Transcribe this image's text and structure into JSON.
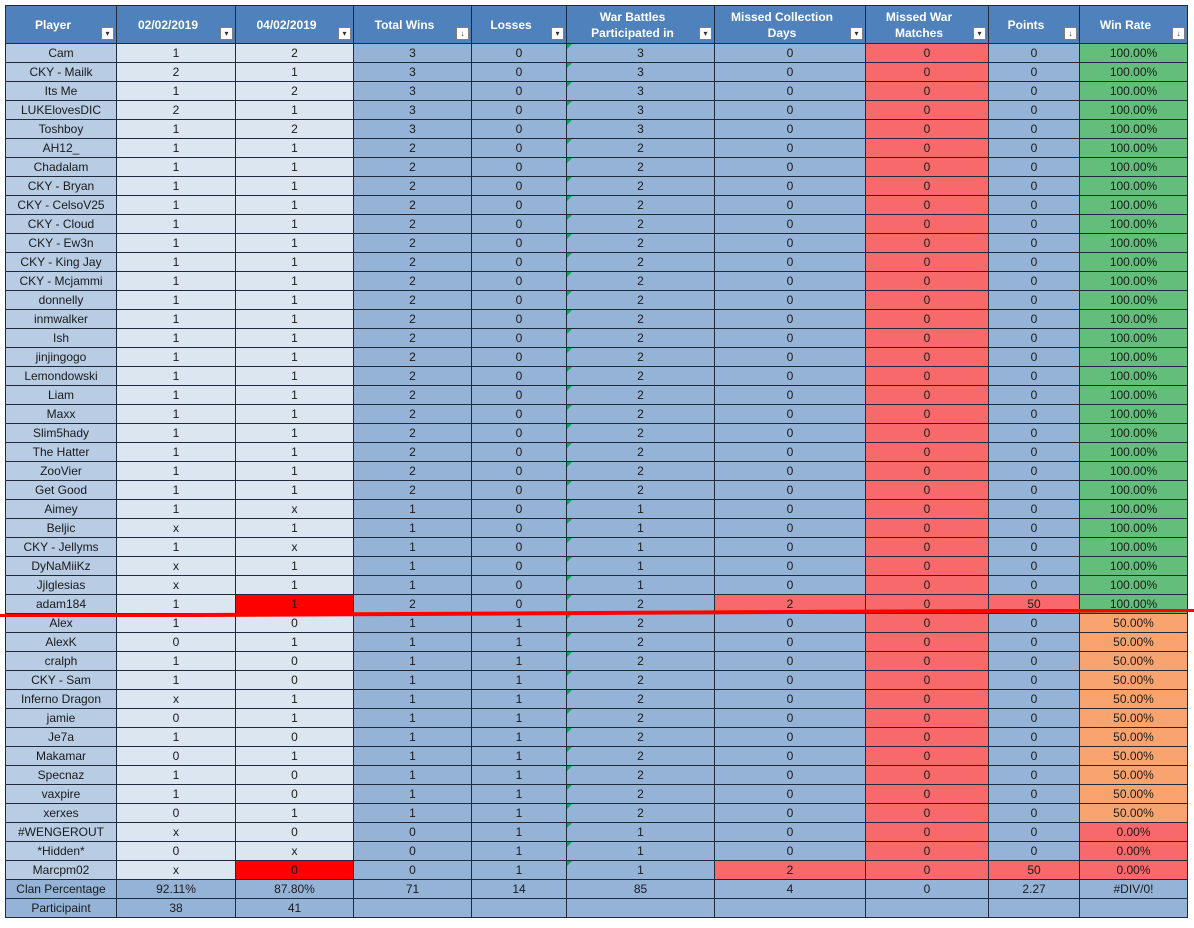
{
  "headers": [
    {
      "label": "Player",
      "filter": "▾"
    },
    {
      "label": "02/02/2019",
      "filter": "▾"
    },
    {
      "label": "04/02/2019",
      "filter": "▾"
    },
    {
      "label": "Total Wins",
      "filter": "↓"
    },
    {
      "label": "Losses",
      "filter": "▾"
    },
    {
      "label": "War Battles Participated in",
      "filter": "▾"
    },
    {
      "label": "Missed Collection Days",
      "filter": "▾"
    },
    {
      "label": "Missed War Matches",
      "filter": "▾"
    },
    {
      "label": "Points",
      "filter": "↓"
    },
    {
      "label": "Win Rate",
      "filter": "↓"
    }
  ],
  "rows": [
    {
      "player": "Cam",
      "d1": "1",
      "d2": "2",
      "wins": "3",
      "losses": "0",
      "wars": "3",
      "coll": "0",
      "miss": "0",
      "pts": "0",
      "rate": "100.00%"
    },
    {
      "player": "CKY - Mailk",
      "d1": "2",
      "d2": "1",
      "wins": "3",
      "losses": "0",
      "wars": "3",
      "coll": "0",
      "miss": "0",
      "pts": "0",
      "rate": "100.00%"
    },
    {
      "player": "Its Me",
      "d1": "1",
      "d2": "2",
      "wins": "3",
      "losses": "0",
      "wars": "3",
      "coll": "0",
      "miss": "0",
      "pts": "0",
      "rate": "100.00%"
    },
    {
      "player": "LUKElovesDIC",
      "d1": "2",
      "d2": "1",
      "wins": "3",
      "losses": "0",
      "wars": "3",
      "coll": "0",
      "miss": "0",
      "pts": "0",
      "rate": "100.00%"
    },
    {
      "player": "Toshboy",
      "d1": "1",
      "d2": "2",
      "wins": "3",
      "losses": "0",
      "wars": "3",
      "coll": "0",
      "miss": "0",
      "pts": "0",
      "rate": "100.00%"
    },
    {
      "player": "AH12_",
      "d1": "1",
      "d2": "1",
      "wins": "2",
      "losses": "0",
      "wars": "2",
      "coll": "0",
      "miss": "0",
      "pts": "0",
      "rate": "100.00%"
    },
    {
      "player": "Chadalam",
      "d1": "1",
      "d2": "1",
      "wins": "2",
      "losses": "0",
      "wars": "2",
      "coll": "0",
      "miss": "0",
      "pts": "0",
      "rate": "100.00%"
    },
    {
      "player": "CKY - Bryan",
      "d1": "1",
      "d2": "1",
      "wins": "2",
      "losses": "0",
      "wars": "2",
      "coll": "0",
      "miss": "0",
      "pts": "0",
      "rate": "100.00%"
    },
    {
      "player": "CKY - CelsoV25",
      "d1": "1",
      "d2": "1",
      "wins": "2",
      "losses": "0",
      "wars": "2",
      "coll": "0",
      "miss": "0",
      "pts": "0",
      "rate": "100.00%"
    },
    {
      "player": "CKY - Cloud",
      "d1": "1",
      "d2": "1",
      "wins": "2",
      "losses": "0",
      "wars": "2",
      "coll": "0",
      "miss": "0",
      "pts": "0",
      "rate": "100.00%"
    },
    {
      "player": "CKY - Ew3n",
      "d1": "1",
      "d2": "1",
      "wins": "2",
      "losses": "0",
      "wars": "2",
      "coll": "0",
      "miss": "0",
      "pts": "0",
      "rate": "100.00%"
    },
    {
      "player": "CKY - King Jay",
      "d1": "1",
      "d2": "1",
      "wins": "2",
      "losses": "0",
      "wars": "2",
      "coll": "0",
      "miss": "0",
      "pts": "0",
      "rate": "100.00%"
    },
    {
      "player": "CKY - Mcjammi",
      "d1": "1",
      "d2": "1",
      "wins": "2",
      "losses": "0",
      "wars": "2",
      "coll": "0",
      "miss": "0",
      "pts": "0",
      "rate": "100.00%"
    },
    {
      "player": "donnelly",
      "d1": "1",
      "d2": "1",
      "wins": "2",
      "losses": "0",
      "wars": "2",
      "coll": "0",
      "miss": "0",
      "pts": "0",
      "rate": "100.00%"
    },
    {
      "player": "inmwalker",
      "d1": "1",
      "d2": "1",
      "wins": "2",
      "losses": "0",
      "wars": "2",
      "coll": "0",
      "miss": "0",
      "pts": "0",
      "rate": "100.00%"
    },
    {
      "player": "Ish",
      "d1": "1",
      "d2": "1",
      "wins": "2",
      "losses": "0",
      "wars": "2",
      "coll": "0",
      "miss": "0",
      "pts": "0",
      "rate": "100.00%"
    },
    {
      "player": "jinjingogo",
      "d1": "1",
      "d2": "1",
      "wins": "2",
      "losses": "0",
      "wars": "2",
      "coll": "0",
      "miss": "0",
      "pts": "0",
      "rate": "100.00%"
    },
    {
      "player": "Lemondowski",
      "d1": "1",
      "d2": "1",
      "wins": "2",
      "losses": "0",
      "wars": "2",
      "coll": "0",
      "miss": "0",
      "pts": "0",
      "rate": "100.00%"
    },
    {
      "player": "Liam",
      "d1": "1",
      "d2": "1",
      "wins": "2",
      "losses": "0",
      "wars": "2",
      "coll": "0",
      "miss": "0",
      "pts": "0",
      "rate": "100.00%"
    },
    {
      "player": "Maxx",
      "d1": "1",
      "d2": "1",
      "wins": "2",
      "losses": "0",
      "wars": "2",
      "coll": "0",
      "miss": "0",
      "pts": "0",
      "rate": "100.00%"
    },
    {
      "player": "Slim5hady",
      "d1": "1",
      "d2": "1",
      "wins": "2",
      "losses": "0",
      "wars": "2",
      "coll": "0",
      "miss": "0",
      "pts": "0",
      "rate": "100.00%"
    },
    {
      "player": "The Hatter",
      "d1": "1",
      "d2": "1",
      "wins": "2",
      "losses": "0",
      "wars": "2",
      "coll": "0",
      "miss": "0",
      "pts": "0",
      "rate": "100.00%"
    },
    {
      "player": "ZooVier",
      "d1": "1",
      "d2": "1",
      "wins": "2",
      "losses": "0",
      "wars": "2",
      "coll": "0",
      "miss": "0",
      "pts": "0",
      "rate": "100.00%"
    },
    {
      "player": "Get Good",
      "d1": "1",
      "d2": "1",
      "wins": "2",
      "losses": "0",
      "wars": "2",
      "coll": "0",
      "miss": "0",
      "pts": "0",
      "rate": "100.00%"
    },
    {
      "player": "Aimey",
      "d1": "1",
      "d2": "x",
      "wins": "1",
      "losses": "0",
      "wars": "1",
      "coll": "0",
      "miss": "0",
      "pts": "0",
      "rate": "100.00%"
    },
    {
      "player": "Beljic",
      "d1": "x",
      "d2": "1",
      "wins": "1",
      "losses": "0",
      "wars": "1",
      "coll": "0",
      "miss": "0",
      "pts": "0",
      "rate": "100.00%"
    },
    {
      "player": "CKY - Jellyms",
      "d1": "1",
      "d2": "x",
      "wins": "1",
      "losses": "0",
      "wars": "1",
      "coll": "0",
      "miss": "0",
      "pts": "0",
      "rate": "100.00%"
    },
    {
      "player": "DyNaMiiKz",
      "d1": "x",
      "d2": "1",
      "wins": "1",
      "losses": "0",
      "wars": "1",
      "coll": "0",
      "miss": "0",
      "pts": "0",
      "rate": "100.00%"
    },
    {
      "player": "Jjlglesias",
      "d1": "x",
      "d2": "1",
      "wins": "1",
      "losses": "0",
      "wars": "1",
      "coll": "0",
      "miss": "0",
      "pts": "0",
      "rate": "100.00%"
    },
    {
      "player": "adam184",
      "d1": "1",
      "d2": "1",
      "wins": "2",
      "losses": "0",
      "wars": "2",
      "coll": "2",
      "miss": "0",
      "pts": "50",
      "rate": "100.00%"
    },
    {
      "player": "Alex",
      "d1": "1",
      "d2": "0",
      "wins": "1",
      "losses": "1",
      "wars": "2",
      "coll": "0",
      "miss": "0",
      "pts": "0",
      "rate": "50.00%"
    },
    {
      "player": "AlexK",
      "d1": "0",
      "d2": "1",
      "wins": "1",
      "losses": "1",
      "wars": "2",
      "coll": "0",
      "miss": "0",
      "pts": "0",
      "rate": "50.00%"
    },
    {
      "player": "cralph",
      "d1": "1",
      "d2": "0",
      "wins": "1",
      "losses": "1",
      "wars": "2",
      "coll": "0",
      "miss": "0",
      "pts": "0",
      "rate": "50.00%"
    },
    {
      "player": "CKY - Sam",
      "d1": "1",
      "d2": "0",
      "wins": "1",
      "losses": "1",
      "wars": "2",
      "coll": "0",
      "miss": "0",
      "pts": "0",
      "rate": "50.00%"
    },
    {
      "player": "Inferno Dragon",
      "d1": "x",
      "d2": "1",
      "wins": "1",
      "losses": "1",
      "wars": "2",
      "coll": "0",
      "miss": "0",
      "pts": "0",
      "rate": "50.00%"
    },
    {
      "player": "jamie",
      "d1": "0",
      "d2": "1",
      "wins": "1",
      "losses": "1",
      "wars": "2",
      "coll": "0",
      "miss": "0",
      "pts": "0",
      "rate": "50.00%"
    },
    {
      "player": "Je7a",
      "d1": "1",
      "d2": "0",
      "wins": "1",
      "losses": "1",
      "wars": "2",
      "coll": "0",
      "miss": "0",
      "pts": "0",
      "rate": "50.00%"
    },
    {
      "player": "Makamar",
      "d1": "0",
      "d2": "1",
      "wins": "1",
      "losses": "1",
      "wars": "2",
      "coll": "0",
      "miss": "0",
      "pts": "0",
      "rate": "50.00%"
    },
    {
      "player": "Specnaz",
      "d1": "1",
      "d2": "0",
      "wins": "1",
      "losses": "1",
      "wars": "2",
      "coll": "0",
      "miss": "0",
      "pts": "0",
      "rate": "50.00%"
    },
    {
      "player": "vaxpire",
      "d1": "1",
      "d2": "0",
      "wins": "1",
      "losses": "1",
      "wars": "2",
      "coll": "0",
      "miss": "0",
      "pts": "0",
      "rate": "50.00%"
    },
    {
      "player": "xerxes",
      "d1": "0",
      "d2": "1",
      "wins": "1",
      "losses": "1",
      "wars": "2",
      "coll": "0",
      "miss": "0",
      "pts": "0",
      "rate": "50.00%"
    },
    {
      "player": "#WENGEROUT",
      "d1": "x",
      "d2": "0",
      "wins": "0",
      "losses": "1",
      "wars": "1",
      "coll": "0",
      "miss": "0",
      "pts": "0",
      "rate": "0.00%"
    },
    {
      "player": "*Hidden*",
      "d1": "0",
      "d2": "x",
      "wins": "0",
      "losses": "1",
      "wars": "1",
      "coll": "0",
      "miss": "0",
      "pts": "0",
      "rate": "0.00%"
    },
    {
      "player": "Marcpm02",
      "d1": "x",
      "d2": "0",
      "wins": "0",
      "losses": "1",
      "wars": "1",
      "coll": "2",
      "miss": "0",
      "pts": "50",
      "rate": "0.00%"
    }
  ],
  "footer": {
    "clan_percentage": {
      "label": "Clan Percentage",
      "d1": "92.11%",
      "d2": "87.80%",
      "wins": "71",
      "losses": "14",
      "wars": "85",
      "coll": "4",
      "miss": "0",
      "pts": "2.27",
      "rate": "#DIV/0!"
    },
    "participant": {
      "label": "Participaint",
      "d1": "38",
      "d2": "41"
    }
  },
  "colors": {
    "header_blue": "#4f81bd",
    "name_col": "#b8cce4",
    "date_cols": "#dce6f1",
    "stat_cols": "#95b3d7",
    "missed_war_red": "#f8696b",
    "win_100_green": "#63be7b",
    "win_50_orange": "#f9a46f",
    "win_0_red": "#f8696b",
    "flag_red": "#ff0000",
    "divider_line": "#ff0000"
  }
}
